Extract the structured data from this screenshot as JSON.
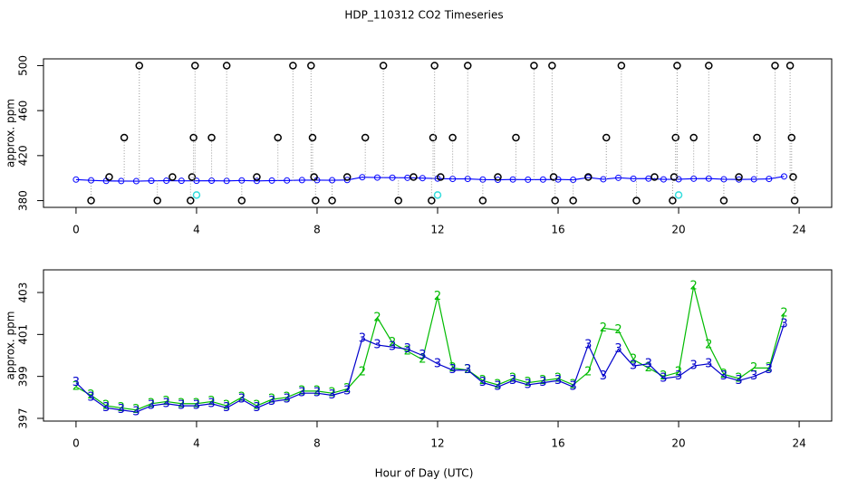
{
  "title": "HDP_110312  CO2 Timeseries",
  "x_label": "Hour of Day (UTC)",
  "chart_data": [
    {
      "type": "line",
      "y_label": "approx. ppm",
      "xlim": [
        -1.08,
        25.08
      ],
      "xticks": [
        0,
        4,
        8,
        12,
        16,
        20,
        24
      ],
      "ylim": [
        374,
        506
      ],
      "yticks": [
        380,
        420,
        460,
        500
      ],
      "series": [
        {
          "style": "line",
          "color": "#0000ff",
          "x": [
            0,
            0.5,
            1,
            1.5,
            2,
            2.5,
            3,
            3.5,
            4,
            4.5,
            5,
            5.5,
            6,
            6.5,
            7,
            7.5,
            8,
            8.5,
            9,
            9.5,
            10,
            10.5,
            11,
            11.5,
            12,
            12.5,
            13,
            13.5,
            14,
            14.5,
            15,
            15.5,
            16,
            16.5,
            17,
            17.5,
            18,
            18.5,
            19,
            19.5,
            20,
            20.5,
            21,
            21.5,
            22,
            22.5,
            23,
            23.5
          ],
          "values": [
            398.7,
            398.0,
            397.5,
            397.4,
            397.3,
            397.6,
            397.7,
            397.6,
            397.6,
            397.7,
            397.5,
            397.9,
            397.5,
            397.8,
            397.9,
            398.2,
            398.2,
            398.1,
            398.3,
            400.8,
            400.5,
            400.4,
            400.3,
            400.0,
            399.6,
            399.3,
            399.3,
            398.7,
            398.5,
            398.8,
            398.6,
            398.7,
            398.8,
            398.5,
            400.5,
            399.0,
            400.3,
            399.5,
            399.6,
            398.9,
            399.0,
            399.5,
            399.6,
            399.0,
            398.8,
            399.0,
            399.3,
            401.5
          ]
        },
        {
          "style": "points",
          "droplines": true,
          "color": "#000000",
          "x": [
            0.5,
            1.1,
            1.6,
            2.1,
            2.7,
            3.2,
            3.8,
            3.85,
            3.9,
            3.95,
            4.5,
            5.0,
            5.5,
            6.0,
            6.7,
            7.2,
            7.8,
            7.85,
            7.9,
            7.95,
            8.5,
            9.0,
            9.6,
            10.2,
            10.7,
            11.2,
            11.8,
            11.85,
            11.9,
            12.1,
            12.5,
            13.0,
            13.5,
            14.0,
            14.6,
            15.2,
            15.8,
            15.85,
            15.9,
            16.5,
            17.0,
            17.6,
            18.1,
            18.6,
            19.2,
            19.8,
            19.85,
            19.9,
            19.95,
            20.5,
            21.0,
            21.5,
            22.0,
            22.6,
            23.2,
            23.7,
            23.75,
            23.8,
            23.85
          ],
          "values": [
            380,
            401,
            436,
            500,
            380,
            401,
            380,
            401,
            436,
            500,
            436,
            500,
            380,
            401,
            436,
            500,
            500,
            436,
            401,
            380,
            380,
            401,
            436,
            500,
            380,
            401,
            380,
            436,
            500,
            401,
            436,
            500,
            380,
            401,
            436,
            500,
            500,
            401,
            380,
            380,
            401,
            436,
            500,
            380,
            401,
            380,
            401,
            436,
            500,
            436,
            500,
            380,
            401,
            436,
            500,
            500,
            436,
            401,
            380
          ]
        },
        {
          "style": "points",
          "color": "#33dddd",
          "x": [
            4.0,
            12.0,
            20.0
          ],
          "values": [
            385,
            385,
            385
          ]
        }
      ]
    },
    {
      "type": "line",
      "y_label": "approx. ppm",
      "xlim": [
        -1.08,
        25.08
      ],
      "xticks": [
        0,
        4,
        8,
        12,
        16,
        20,
        24
      ],
      "ylim": [
        396.87,
        404.08
      ],
      "yticks": [
        397,
        399,
        401,
        403
      ],
      "series": [
        {
          "style": "line-text",
          "marker": "2",
          "color": "#00bb00",
          "x": [
            0,
            0.5,
            1,
            1.5,
            2,
            2.5,
            3,
            3.5,
            4,
            4.5,
            5,
            5.5,
            6,
            6.5,
            7,
            7.5,
            8,
            8.5,
            9,
            9.5,
            10,
            10.5,
            11,
            11.5,
            12,
            12.5,
            13,
            13.5,
            14,
            14.5,
            15,
            15.5,
            16,
            16.5,
            17,
            17.5,
            18,
            18.5,
            19,
            19.5,
            20,
            20.5,
            21,
            21.5,
            22,
            22.5,
            23,
            23.5
          ],
          "values": [
            398.5,
            398.1,
            397.6,
            397.5,
            397.4,
            397.7,
            397.8,
            397.7,
            397.7,
            397.8,
            397.6,
            398.0,
            397.6,
            397.9,
            398.0,
            398.3,
            398.3,
            398.2,
            398.4,
            399.2,
            401.8,
            400.6,
            400.2,
            399.8,
            402.8,
            399.4,
            399.3,
            398.8,
            398.6,
            398.9,
            398.7,
            398.8,
            398.9,
            398.6,
            399.2,
            401.3,
            401.2,
            399.8,
            399.4,
            399.0,
            399.2,
            403.3,
            400.5,
            399.1,
            398.9,
            399.4,
            399.4,
            402.0
          ]
        },
        {
          "style": "line-text",
          "marker": "3",
          "color": "#0000cc",
          "x": [
            0,
            0.5,
            1,
            1.5,
            2,
            2.5,
            3,
            3.5,
            4,
            4.5,
            5,
            5.5,
            6,
            6.5,
            7,
            7.5,
            8,
            8.5,
            9,
            9.5,
            10,
            10.5,
            11,
            11.5,
            12,
            12.5,
            13,
            13.5,
            14,
            14.5,
            15,
            15.5,
            16,
            16.5,
            17,
            17.5,
            18,
            18.5,
            19,
            19.5,
            20,
            20.5,
            21,
            21.5,
            22,
            22.5,
            23,
            23.5
          ],
          "values": [
            398.7,
            398.0,
            397.5,
            397.4,
            397.3,
            397.6,
            397.7,
            397.6,
            397.6,
            397.7,
            397.5,
            397.9,
            397.5,
            397.8,
            397.9,
            398.2,
            398.2,
            398.1,
            398.3,
            400.8,
            400.5,
            400.4,
            400.3,
            400.0,
            399.6,
            399.3,
            399.3,
            398.7,
            398.5,
            398.8,
            398.6,
            398.7,
            398.8,
            398.5,
            400.5,
            399.0,
            400.3,
            399.5,
            399.6,
            398.9,
            399.0,
            399.5,
            399.6,
            399.0,
            398.8,
            399.0,
            399.3,
            401.5
          ]
        }
      ]
    }
  ]
}
